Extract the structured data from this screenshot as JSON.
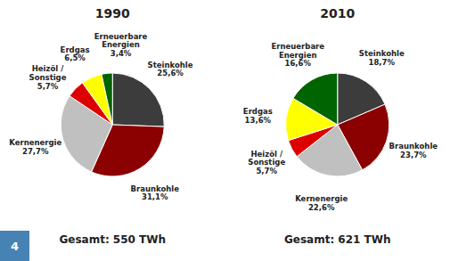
{
  "chart_data": [
    {
      "type": "pie",
      "title": "1990",
      "categories": [
        "Steinkohle",
        "Braunkohle",
        "Kernenergie",
        "Heizöl /\nSonstige",
        "Erdgas",
        "Erneuerbare\nEnergien"
      ],
      "values": [
        25.6,
        31.1,
        27.7,
        5.7,
        6.5,
        3.4
      ],
      "value_labels": [
        "25,6%",
        "31,1%",
        "27,7%",
        "5,7%",
        "6,5%",
        "3,4%"
      ],
      "colors": [
        "#3C3C3C",
        "#8B0000",
        "#C0C0C0",
        "#DD0000",
        "#FFFF00",
        "#006400"
      ],
      "annotations": [
        "Gesamt: 550 TWh"
      ]
    },
    {
      "type": "pie",
      "title": "2010",
      "categories": [
        "Steinkohle",
        "Braunkohle",
        "Kernenergie",
        "Heizöl /\nSonstige",
        "Erdgas",
        "Erneuerbare\nEnergien"
      ],
      "values": [
        18.7,
        23.7,
        22.6,
        5.7,
        13.6,
        16.6
      ],
      "value_labels": [
        "18,7%",
        "23,7%",
        "22,6%",
        "5,7%",
        "13,6%",
        "16,6%"
      ],
      "colors": [
        "#3C3C3C",
        "#8B0000",
        "#C0C0C0",
        "#DD0000",
        "#FFFF00",
        "#006400"
      ],
      "annotations": [
        "Gesamt: 621 TWh"
      ]
    }
  ],
  "page_number": "4"
}
